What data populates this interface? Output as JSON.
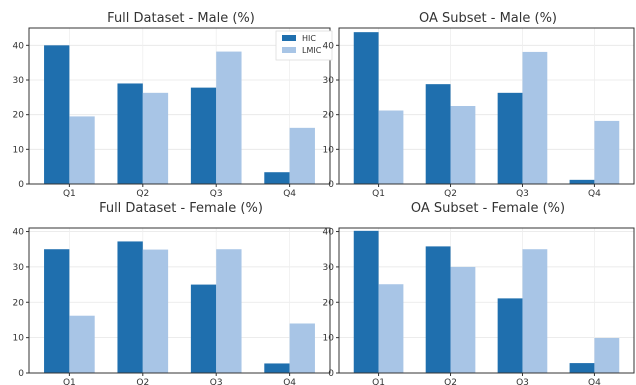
{
  "chart_data": [
    {
      "type": "bar",
      "title": "Full Dataset - Male (%)",
      "categories": [
        "Q1",
        "Q2",
        "Q3",
        "Q4"
      ],
      "series": [
        {
          "name": "HIC",
          "values": [
            40.0,
            29.0,
            27.8,
            3.4
          ],
          "color": "#1f6fae"
        },
        {
          "name": "LMIC",
          "values": [
            19.5,
            26.3,
            38.2,
            16.2
          ],
          "color": "#a8c5e6"
        }
      ],
      "yticks": [
        0,
        10,
        20,
        30,
        40
      ],
      "ylim": [
        0,
        45
      ],
      "grid": true,
      "legend": "top-right"
    },
    {
      "type": "bar",
      "title": "OA Subset - Male (%)",
      "categories": [
        "Q1",
        "Q2",
        "Q3",
        "Q4"
      ],
      "series": [
        {
          "name": "HIC",
          "values": [
            43.8,
            28.8,
            26.3,
            1.2
          ],
          "color": "#1f6fae"
        },
        {
          "name": "LMIC",
          "values": [
            21.2,
            22.5,
            38.1,
            18.2
          ],
          "color": "#a8c5e6"
        }
      ],
      "yticks": [
        0,
        10,
        20,
        30,
        40
      ],
      "ylim": [
        0,
        45
      ],
      "grid": true
    },
    {
      "type": "bar",
      "title": "Full Dataset - Female (%)",
      "categories": [
        "Q1",
        "Q2",
        "Q3",
        "Q4"
      ],
      "series": [
        {
          "name": "HIC",
          "values": [
            35.0,
            37.2,
            25.0,
            2.7
          ],
          "color": "#1f6fae"
        },
        {
          "name": "LMIC",
          "values": [
            16.2,
            34.9,
            35.0,
            14.0
          ],
          "color": "#a8c5e6"
        }
      ],
      "yticks": [
        0,
        10,
        20,
        30,
        40
      ],
      "ylim": [
        0,
        41
      ],
      "grid": true
    },
    {
      "type": "bar",
      "title": "OA Subset - Female (%)",
      "categories": [
        "Q1",
        "Q2",
        "Q3",
        "Q4"
      ],
      "series": [
        {
          "name": "HIC",
          "values": [
            40.2,
            35.8,
            21.1,
            2.8
          ],
          "color": "#1f6fae"
        },
        {
          "name": "LMIC",
          "values": [
            25.1,
            30.0,
            35.0,
            9.9
          ],
          "color": "#a8c5e6"
        }
      ],
      "yticks": [
        0,
        10,
        20,
        30,
        40
      ],
      "ylim": [
        0,
        41
      ],
      "grid": true
    }
  ]
}
